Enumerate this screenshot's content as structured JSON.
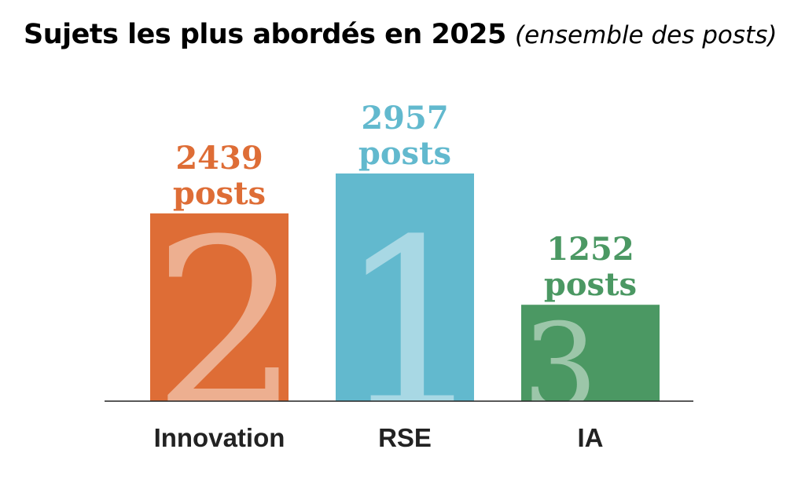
{
  "title": {
    "main": "Sujets les plus abordés en 2025",
    "sub": "(ensemble des posts)"
  },
  "chart_data": {
    "type": "bar",
    "title": "Sujets les plus abordés en 2025 (ensemble des posts)",
    "categories": [
      "Innovation",
      "RSE",
      "IA"
    ],
    "values": [
      2439,
      2957,
      1252
    ],
    "value_labels": [
      "2439",
      "2957",
      "1252"
    ],
    "unit_label": "posts",
    "ranks": [
      "2",
      "1",
      "3"
    ],
    "colors": [
      "#DE6D36",
      "#62B9CE",
      "#4B9863"
    ],
    "xlabel": "",
    "ylabel": "",
    "ylim": [
      0,
      3300
    ],
    "grid": false,
    "legend": "none"
  }
}
